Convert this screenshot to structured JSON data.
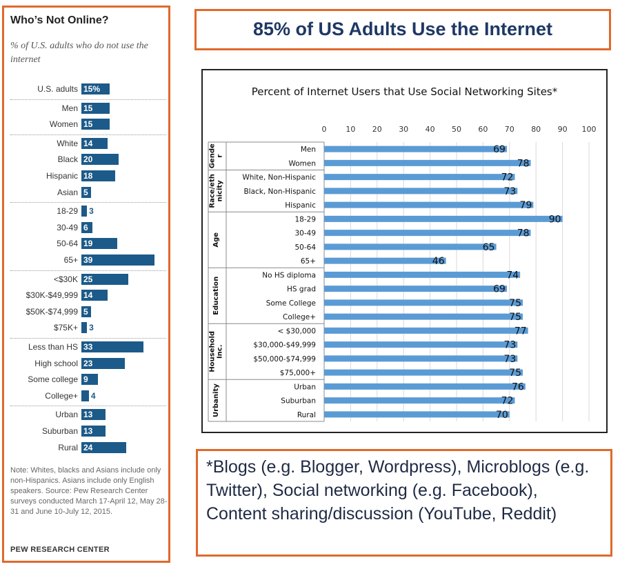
{
  "left_panel": {
    "title": "Who’s Not Online?",
    "subtitle": "% of U.S. adults who do not use the internet",
    "rows": [
      {
        "label": "U.S. adults",
        "value": 15,
        "display": "15%"
      },
      {
        "label": "Men",
        "value": 15,
        "display": "15"
      },
      {
        "label": "Women",
        "value": 15,
        "display": "15"
      },
      {
        "label": "White",
        "value": 14,
        "display": "14"
      },
      {
        "label": "Black",
        "value": 20,
        "display": "20"
      },
      {
        "label": "Hispanic",
        "value": 18,
        "display": "18"
      },
      {
        "label": "Asian",
        "value": 5,
        "display": "5"
      },
      {
        "label": "18-29",
        "value": 3,
        "display": "3"
      },
      {
        "label": "30-49",
        "value": 6,
        "display": "6"
      },
      {
        "label": "50-64",
        "value": 19,
        "display": "19"
      },
      {
        "label": "65+",
        "value": 39,
        "display": "39"
      },
      {
        "label": "<$30K",
        "value": 25,
        "display": "25"
      },
      {
        "label": "$30K-$49,999",
        "value": 14,
        "display": "14"
      },
      {
        "label": "$50K-$74,999",
        "value": 5,
        "display": "5"
      },
      {
        "label": "$75K+",
        "value": 3,
        "display": "3"
      },
      {
        "label": "Less than HS",
        "value": 33,
        "display": "33"
      },
      {
        "label": "High school",
        "value": 23,
        "display": "23"
      },
      {
        "label": "Some college",
        "value": 9,
        "display": "9"
      },
      {
        "label": "College+",
        "value": 4,
        "display": "4"
      },
      {
        "label": "Urban",
        "value": 13,
        "display": "13"
      },
      {
        "label": "Suburban",
        "value": 13,
        "display": "13"
      },
      {
        "label": "Rural",
        "value": 24,
        "display": "24"
      }
    ],
    "note": "Note: Whites, blacks and Asians include only non-Hispanics. Asians include only English speakers. Source: Pew Research Center surveys conducted March 17-April 12, May 28-31 and June 10-July 12, 2015.",
    "brand": "PEW RESEARCH CENTER"
  },
  "headline": "85% of US Adults Use the Internet",
  "footnote": "*Blogs (e.g. Blogger, Wordpress), Microblogs (e.g. Twitter), Social networking (e.g. Facebook), Content sharing/discussion (YouTube, Reddit)",
  "chart_data": [
    {
      "type": "bar",
      "orientation": "horizontal",
      "title": "Who’s Not Online?",
      "subtitle": "% of U.S. adults who do not use the internet",
      "categories": [
        "U.S. adults",
        "Men",
        "Women",
        "White",
        "Black",
        "Hispanic",
        "Asian",
        "18-29",
        "30-49",
        "50-64",
        "65+",
        "<$30K",
        "$30K-$49,999",
        "$50K-$74,999",
        "$75K+",
        "Less than HS",
        "High school",
        "Some college",
        "College+",
        "Urban",
        "Suburban",
        "Rural"
      ],
      "values": [
        15,
        15,
        15,
        14,
        20,
        18,
        5,
        3,
        6,
        19,
        39,
        25,
        14,
        5,
        3,
        33,
        23,
        9,
        4,
        13,
        13,
        24
      ],
      "bar_color": "#1c5a89"
    },
    {
      "type": "bar",
      "orientation": "horizontal",
      "title": "Percent of Internet Users that Use Social Networking Sites*",
      "groups": [
        {
          "name": "Gender",
          "label": "Gende r",
          "categories": [
            "Men",
            "Women"
          ],
          "values": [
            69,
            78
          ]
        },
        {
          "name": "Race/ethnicity",
          "label": "Race/eth nicity",
          "categories": [
            "White, Non-Hispanic",
            "Black, Non-Hispanic",
            "Hispanic"
          ],
          "values": [
            72,
            73,
            79
          ]
        },
        {
          "name": "Age",
          "label": "Age",
          "categories": [
            "18-29",
            "30-49",
            "50-64",
            "65+"
          ],
          "values": [
            90,
            78,
            65,
            46
          ]
        },
        {
          "name": "Education",
          "label": "Education",
          "categories": [
            "No HS diploma",
            "HS grad",
            "Some College",
            "College+"
          ],
          "values": [
            74,
            69,
            75,
            75
          ]
        },
        {
          "name": "Household Inc.",
          "label": "Household Inc.",
          "categories": [
            "< $30,000",
            "$30,000-$49,999",
            "$50,000-$74,999",
            "$75,000+"
          ],
          "values": [
            77,
            73,
            73,
            75
          ]
        },
        {
          "name": "Urbanity",
          "label": "Urbanity",
          "categories": [
            "Urban",
            "Suburban",
            "Rural"
          ],
          "values": [
            76,
            72,
            70
          ]
        }
      ],
      "xlim": [
        0,
        100
      ],
      "xticks": [
        0,
        10,
        20,
        30,
        40,
        50,
        60,
        70,
        80,
        90,
        100
      ],
      "grid": true,
      "bar_color": "#5b9bd5"
    }
  ]
}
